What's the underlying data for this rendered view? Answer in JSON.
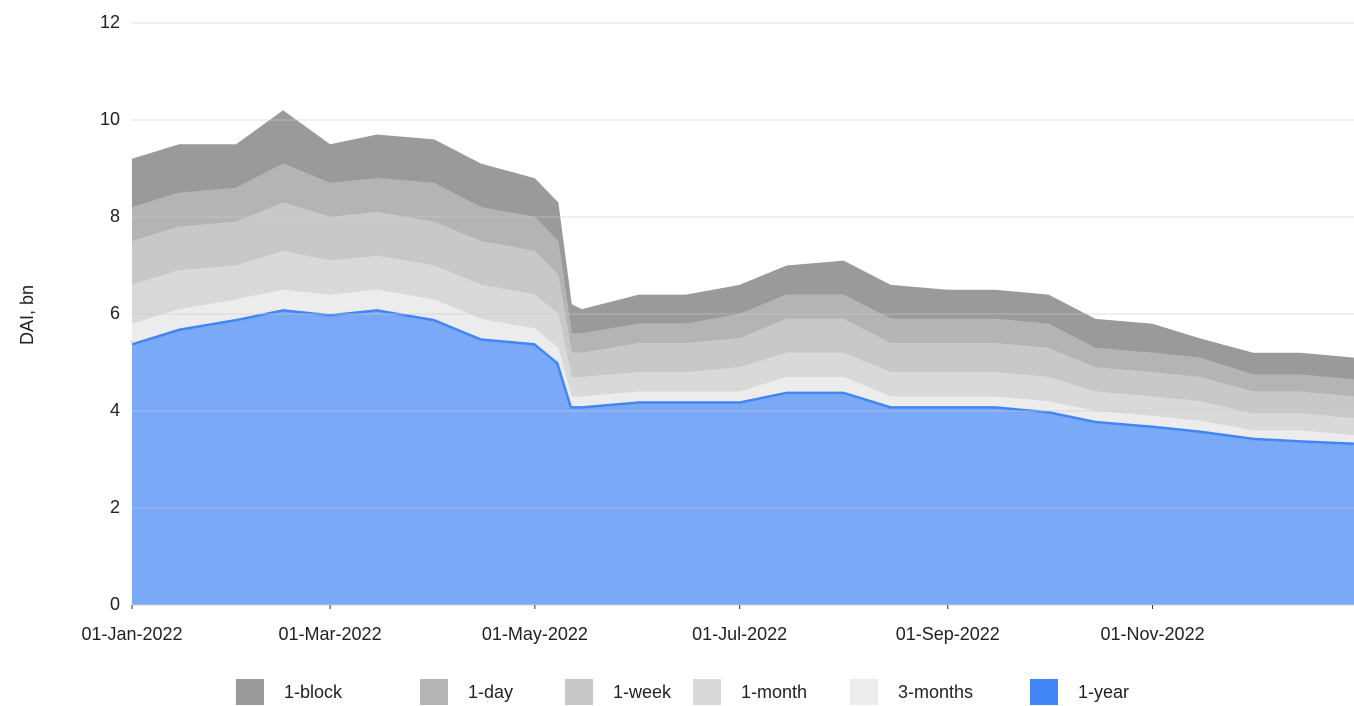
{
  "chart_data": {
    "type": "stacked_area",
    "y_label": "DAI, bn",
    "x": [
      "2022-01-01",
      "2022-01-15",
      "2022-02-01",
      "2022-02-15",
      "2022-03-01",
      "2022-03-15",
      "2022-04-01",
      "2022-04-15",
      "2022-05-01",
      "2022-05-08",
      "2022-05-12",
      "2022-05-15",
      "2022-06-01",
      "2022-06-15",
      "2022-07-01",
      "2022-07-15",
      "2022-08-01",
      "2022-08-15",
      "2022-09-01",
      "2022-09-15",
      "2022-10-01",
      "2022-10-15",
      "2022-11-01",
      "2022-11-15",
      "2022-12-01",
      "2022-12-15",
      "2022-12-31"
    ],
    "series": [
      {
        "name": "1-block",
        "color": "#9a9a9a",
        "values": [
          1.0,
          1.0,
          0.9,
          1.1,
          0.8,
          0.9,
          0.9,
          0.9,
          0.8,
          0.8,
          0.6,
          0.5,
          0.6,
          0.6,
          0.6,
          0.6,
          0.7,
          0.7,
          0.6,
          0.6,
          0.6,
          0.6,
          0.6,
          0.4,
          0.45,
          0.45,
          0.45
        ]
      },
      {
        "name": "1-day",
        "color": "#b4b4b4",
        "values": [
          0.7,
          0.7,
          0.7,
          0.8,
          0.7,
          0.7,
          0.8,
          0.7,
          0.7,
          0.7,
          0.4,
          0.4,
          0.4,
          0.4,
          0.5,
          0.5,
          0.5,
          0.5,
          0.5,
          0.5,
          0.5,
          0.4,
          0.4,
          0.4,
          0.35,
          0.35,
          0.35
        ]
      },
      {
        "name": "1-week",
        "color": "#c8c8c8",
        "values": [
          0.9,
          0.9,
          0.9,
          1.0,
          0.9,
          0.9,
          0.9,
          0.9,
          0.9,
          0.8,
          0.5,
          0.5,
          0.6,
          0.6,
          0.6,
          0.7,
          0.7,
          0.6,
          0.6,
          0.6,
          0.6,
          0.5,
          0.5,
          0.5,
          0.45,
          0.45,
          0.45
        ]
      },
      {
        "name": "1-month",
        "color": "#d9d9d9",
        "values": [
          0.8,
          0.8,
          0.7,
          0.8,
          0.7,
          0.7,
          0.7,
          0.7,
          0.7,
          0.7,
          0.4,
          0.4,
          0.4,
          0.4,
          0.5,
          0.5,
          0.5,
          0.5,
          0.5,
          0.5,
          0.5,
          0.4,
          0.4,
          0.4,
          0.35,
          0.35,
          0.35
        ]
      },
      {
        "name": "3-months",
        "color": "#ececec",
        "values": [
          0.4,
          0.4,
          0.4,
          0.4,
          0.4,
          0.4,
          0.4,
          0.4,
          0.3,
          0.3,
          0.2,
          0.2,
          0.2,
          0.2,
          0.2,
          0.3,
          0.3,
          0.2,
          0.2,
          0.2,
          0.2,
          0.2,
          0.2,
          0.2,
          0.15,
          0.2,
          0.15
        ]
      },
      {
        "name": "1-year",
        "color": "#4285f4",
        "values": [
          5.4,
          5.7,
          5.9,
          6.1,
          6.0,
          6.1,
          5.9,
          5.5,
          5.4,
          5.0,
          4.1,
          4.1,
          4.2,
          4.2,
          4.2,
          4.4,
          4.4,
          4.1,
          4.1,
          4.1,
          4.0,
          3.8,
          3.7,
          3.6,
          3.45,
          3.4,
          3.35
        ]
      }
    ],
    "xlim": [
      "2022-01-01",
      "2022-12-31"
    ],
    "xticks": [
      {
        "value": "2022-01-01",
        "label": "01-Jan-2022"
      },
      {
        "value": "2022-03-01",
        "label": "01-Mar-2022"
      },
      {
        "value": "2022-05-01",
        "label": "01-May-2022"
      },
      {
        "value": "2022-07-01",
        "label": "01-Jul-2022"
      },
      {
        "value": "2022-09-01",
        "label": "01-Sep-2022"
      },
      {
        "value": "2022-11-01",
        "label": "01-Nov-2022"
      }
    ],
    "ylim": [
      0,
      12
    ],
    "yticks": [
      0,
      2,
      4,
      6,
      8,
      10,
      12
    ],
    "grid": true,
    "legend": "bottom"
  }
}
